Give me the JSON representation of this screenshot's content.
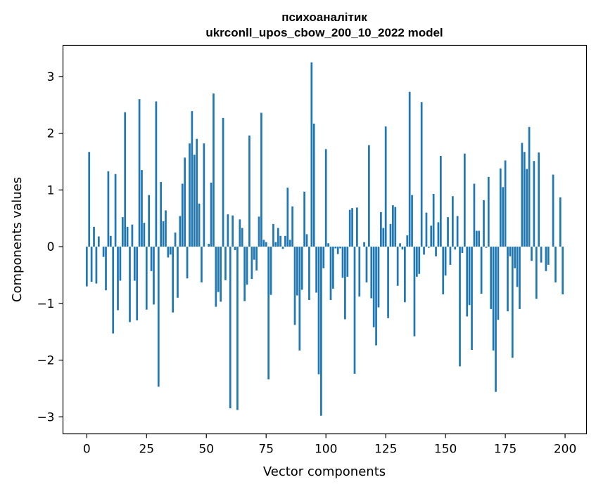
{
  "chart_data": {
    "type": "bar",
    "title_line1": "психоаналітик",
    "title_line2": "ukrconll_upos_cbow_200_10_2022 model",
    "xlabel": "Vector components",
    "ylabel": "Components values",
    "xlim": [
      -9.95,
      208.95
    ],
    "ylim": [
      -3.3,
      3.55
    ],
    "xticks": [
      0,
      25,
      50,
      75,
      100,
      125,
      150,
      175,
      200
    ],
    "xtick_labels": [
      "0",
      "25",
      "50",
      "75",
      "100",
      "125",
      "150",
      "175",
      "200"
    ],
    "yticks": [
      -3,
      -2,
      -1,
      0,
      1,
      2,
      3
    ],
    "ytick_labels": [
      "−3",
      "−2",
      "−1",
      "0",
      "1",
      "2",
      "3"
    ],
    "bar_color": "#1f77b4",
    "grid": false,
    "values": [
      -0.7,
      1.67,
      -0.62,
      0.35,
      -0.65,
      0.18,
      0.0,
      -0.18,
      -0.77,
      1.33,
      0.19,
      -1.53,
      1.28,
      -1.12,
      -0.6,
      0.52,
      2.37,
      0.35,
      -1.33,
      0.39,
      -0.6,
      -1.3,
      2.6,
      1.35,
      0.42,
      -1.11,
      0.91,
      -0.43,
      -1.02,
      2.56,
      -2.47,
      1.14,
      0.45,
      0.64,
      -0.19,
      -0.14,
      -1.16,
      0.25,
      -0.9,
      0.54,
      1.11,
      1.57,
      -0.56,
      1.82,
      2.39,
      1.62,
      1.9,
      0.76,
      -0.63,
      1.82,
      0.0,
      0.05,
      1.13,
      2.7,
      -1.06,
      -0.8,
      -0.97,
      2.27,
      -0.59,
      0.57,
      -2.85,
      0.55,
      -0.06,
      -2.88,
      0.48,
      0.33,
      -0.96,
      -0.67,
      1.96,
      -0.57,
      -0.23,
      -0.42,
      0.53,
      2.36,
      0.12,
      0.08,
      -2.34,
      -0.85,
      0.4,
      0.08,
      0.33,
      0.19,
      -0.04,
      0.19,
      1.04,
      0.12,
      0.71,
      -1.38,
      -0.86,
      -1.83,
      -0.76,
      0.97,
      0.22,
      -0.94,
      3.25,
      2.17,
      -0.81,
      -2.25,
      -2.98,
      -0.38,
      1.72,
      0.06,
      -0.94,
      -0.74,
      -0.03,
      -0.13,
      -0.03,
      -0.55,
      -1.28,
      -0.53,
      0.65,
      0.68,
      -2.24,
      0.69,
      -0.88,
      0.0,
      0.08,
      -0.63,
      1.79,
      -0.91,
      -1.42,
      -1.74,
      -1.07,
      0.61,
      0.33,
      2.12,
      -1.26,
      0.4,
      0.73,
      0.7,
      -0.69,
      0.06,
      -0.05,
      -0.98,
      0.2,
      2.73,
      0.91,
      -1.58,
      -0.53,
      -0.48,
      2.55,
      -0.14,
      0.6,
      -0.02,
      0.37,
      0.93,
      -0.17,
      0.43,
      1.6,
      -0.84,
      -0.51,
      0.52,
      -0.32,
      0.89,
      -0.05,
      0.54,
      -2.11,
      -0.11,
      1.64,
      -1.23,
      -1.03,
      -1.82,
      1.11,
      0.28,
      0.28,
      -0.83,
      0.82,
      -0.02,
      1.23,
      -1.1,
      -1.83,
      -2.56,
      -1.29,
      1.38,
      1.05,
      1.52,
      -1.14,
      -0.17,
      -1.96,
      -0.38,
      -0.71,
      -1.1,
      1.83,
      1.67,
      1.37,
      2.11,
      -0.25,
      1.51,
      -0.92,
      1.66,
      -0.28,
      0.0,
      -0.43,
      -0.32,
      0.0,
      1.27,
      -0.63,
      0.0,
      0.87,
      -0.84
    ]
  }
}
